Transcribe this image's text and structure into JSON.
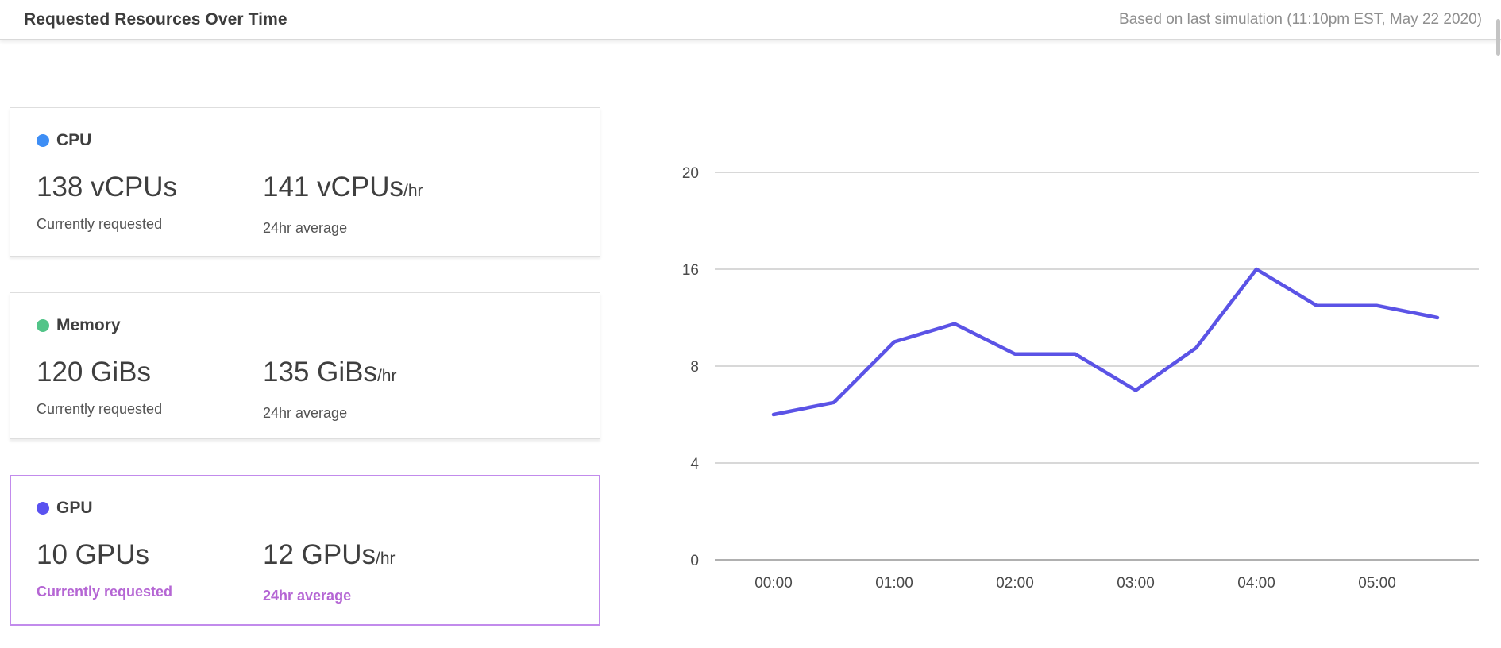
{
  "header": {
    "title": "Requested Resources Over Time",
    "subtitle": "Based on last simulation (11:10pm EST, May 22 2020)"
  },
  "cards": [
    {
      "label": "CPU",
      "dot_color": "#3E8EF5",
      "current_value": "138 vCPUs",
      "current_caption": "Currently requested",
      "average_value": "141 vCPUs",
      "average_suffix": "/hr",
      "average_caption": "24hr average",
      "selected": false
    },
    {
      "label": "Memory",
      "dot_color": "#52C488",
      "current_value": "120 GiBs",
      "current_caption": "Currently requested",
      "average_value": "135 GiBs",
      "average_suffix": "/hr",
      "average_caption": "24hr average",
      "selected": false
    },
    {
      "label": "GPU",
      "dot_color": "#5A52F0",
      "current_value": "10 GPUs",
      "current_caption": "Currently requested",
      "average_value": "12 GPUs",
      "average_suffix": "/hr",
      "average_caption": "24hr average",
      "selected": true,
      "border_color": "#C28BEC",
      "accent_text_color": "#B566D4"
    }
  ],
  "chart_data": {
    "type": "line",
    "x": [
      "00:00",
      "00:30",
      "01:00",
      "01:30",
      "02:00",
      "02:30",
      "03:00",
      "03:30",
      "04:00",
      "04:30",
      "05:00",
      "05:30"
    ],
    "values": [
      6,
      6.5,
      10,
      11.5,
      9,
      9,
      7,
      9.5,
      16,
      13,
      13,
      12
    ],
    "y_ticks_top_to_bottom": [
      20,
      16,
      8,
      4,
      0
    ],
    "x_tick_every": 2,
    "title": "",
    "xlabel": "",
    "ylabel": "",
    "grid": "horizontal",
    "legend": "none",
    "line_color": "#5B53E6",
    "grid_color": "#CBCBCB",
    "axis_line_color": "#B0B0B0",
    "axis_text_color": "#4A4A4A"
  }
}
